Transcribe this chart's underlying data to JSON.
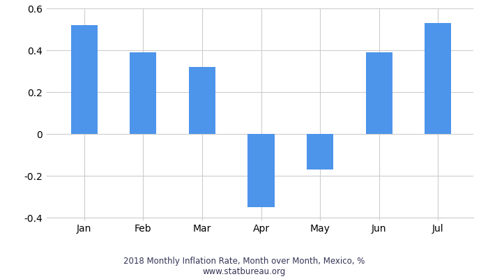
{
  "categories": [
    "Jan",
    "Feb",
    "Mar",
    "Apr",
    "May",
    "Jun",
    "Jul"
  ],
  "values": [
    0.52,
    0.39,
    0.32,
    -0.35,
    -0.17,
    0.39,
    0.53
  ],
  "bar_color": "#4d94eb",
  "title_line1": "2018 Monthly Inflation Rate, Month over Month, Mexico, %",
  "title_line2": "www.statbureau.org",
  "ylim": [
    -0.4,
    0.6
  ],
  "ytick_values": [
    -0.4,
    -0.2,
    0.0,
    0.2,
    0.4,
    0.6
  ],
  "ytick_labels": [
    "-0.4",
    "-0.2",
    "0",
    "0.2",
    "0.4",
    "0.6"
  ],
  "background_color": "#ffffff",
  "grid_color": "#cccccc",
  "title_fontsize": 8.5,
  "tick_fontsize": 10,
  "bar_width": 0.45
}
